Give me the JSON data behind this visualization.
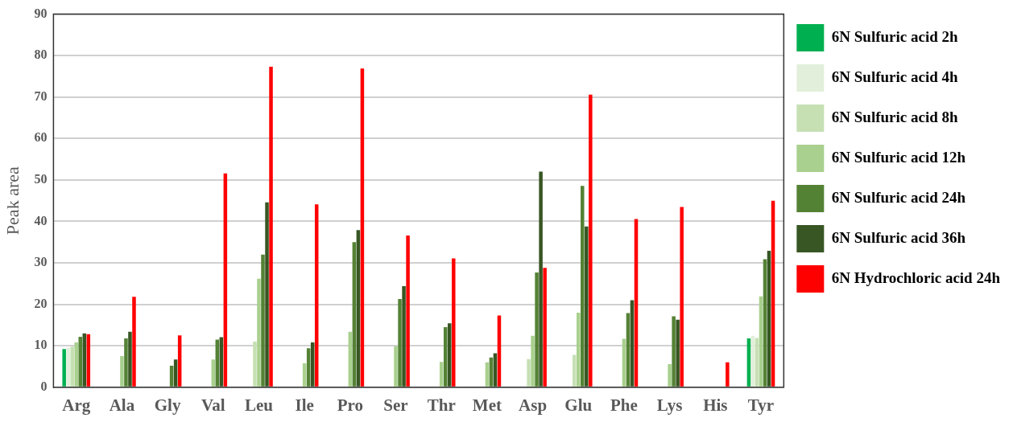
{
  "chart_data": {
    "type": "bar",
    "ylabel": "Peak area",
    "categories": [
      "Arg",
      "Ala",
      "Gly",
      "Val",
      "Leu",
      "Ile",
      "Pro",
      "Ser",
      "Thr",
      "Met",
      "Asp",
      "Glu",
      "Phe",
      "Lys",
      "His",
      "Tyr"
    ],
    "series": [
      {
        "name": "6N Sulfuric acid 2h",
        "color": "#00b050",
        "values": [
          9.2,
          null,
          null,
          null,
          null,
          null,
          null,
          null,
          null,
          null,
          null,
          null,
          null,
          null,
          null,
          11.8
        ]
      },
      {
        "name": "6N Sulfuric acid 4h",
        "color": "#e2efda",
        "values": [
          9.5,
          null,
          null,
          null,
          null,
          null,
          null,
          null,
          null,
          null,
          null,
          null,
          null,
          null,
          null,
          12.4
        ]
      },
      {
        "name": "6N Sulfuric acid 8h",
        "color": "#c6e0b4",
        "values": [
          9.8,
          null,
          null,
          null,
          11,
          null,
          null,
          null,
          null,
          null,
          6.8,
          7.8,
          null,
          null,
          null,
          11.9
        ]
      },
      {
        "name": "6N Sulfuric acid 12h",
        "color": "#a9d08e",
        "values": [
          10.8,
          7.5,
          null,
          6.7,
          26.2,
          5.8,
          13.4,
          9.9,
          6.1,
          6,
          12.4,
          18,
          11.7,
          5.6,
          null,
          21.9
        ]
      },
      {
        "name": "6N Sulfuric acid 24h",
        "color": "#548235",
        "values": [
          12.2,
          11.8,
          5.2,
          11.5,
          32,
          9.4,
          35,
          21.3,
          14.5,
          7.2,
          27.7,
          48.6,
          17.9,
          17.1,
          null,
          30.9
        ]
      },
      {
        "name": "6N Sulfuric acid 36h",
        "color": "#375623",
        "values": [
          13,
          13.4,
          6.7,
          12.1,
          44.6,
          10.8,
          37.9,
          24.4,
          15.4,
          8.2,
          52,
          38.8,
          21,
          16.3,
          null,
          32.9
        ]
      },
      {
        "name": "6N Hydrochloric acid 24h",
        "color": "#ff0000",
        "values": [
          12.8,
          21.8,
          12.5,
          51.6,
          77.3,
          44.1,
          76.9,
          36.6,
          31.1,
          17.3,
          28.8,
          70.6,
          40.6,
          43.5,
          6,
          45
        ]
      }
    ],
    "ylim": [
      0,
      90
    ],
    "yticks": [
      0,
      10,
      20,
      30,
      40,
      50,
      60,
      70,
      80,
      90
    ],
    "grid": "y",
    "legend": "right"
  }
}
